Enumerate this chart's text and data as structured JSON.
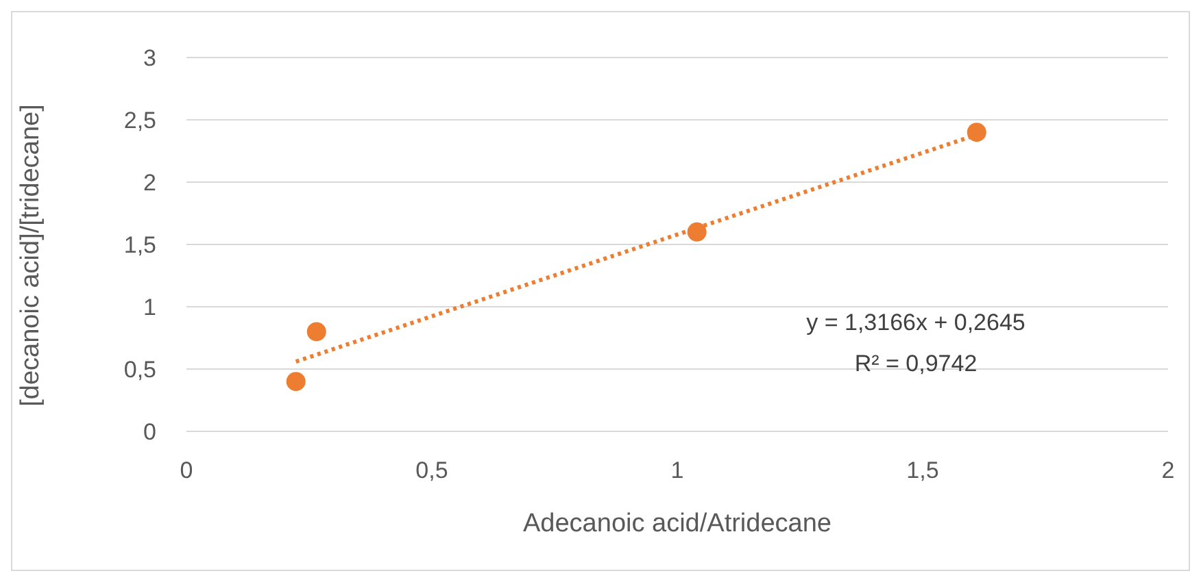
{
  "chart_data": {
    "type": "scatter",
    "xlabel": "Adecanoic acid/Atridecane",
    "ylabel": "[decanoic acid]/[tridecane]",
    "xlim": [
      0,
      2
    ],
    "xticks": [
      0,
      {
        "value": 0.5,
        "label": "0,5"
      },
      1,
      {
        "value": 1.5,
        "label": "1,5"
      },
      2
    ],
    "ylim": [
      0,
      3
    ],
    "yticks": [
      0,
      {
        "value": 0.5,
        "label": "0,5"
      },
      1,
      {
        "value": 1.5,
        "label": "1,5"
      },
      2,
      {
        "value": 2.5,
        "label": "2,5"
      },
      3
    ],
    "grid": "y",
    "series": [
      {
        "color": "#ed7d31",
        "marker": "circle",
        "x": [
          0.223,
          0.265,
          1.04,
          1.61
        ],
        "values": [
          0.4,
          0.8,
          1.6,
          2.4
        ]
      },
      {
        "type": "line",
        "color": "#ed7d31",
        "marker": "none",
        "line_style": "dotted",
        "x": [
          0.223,
          1.61
        ],
        "values": [
          0.56,
          2.38
        ]
      }
    ],
    "annotations": [
      "y = 1,3166x + 0,2645",
      "R² = 0,9742"
    ]
  }
}
